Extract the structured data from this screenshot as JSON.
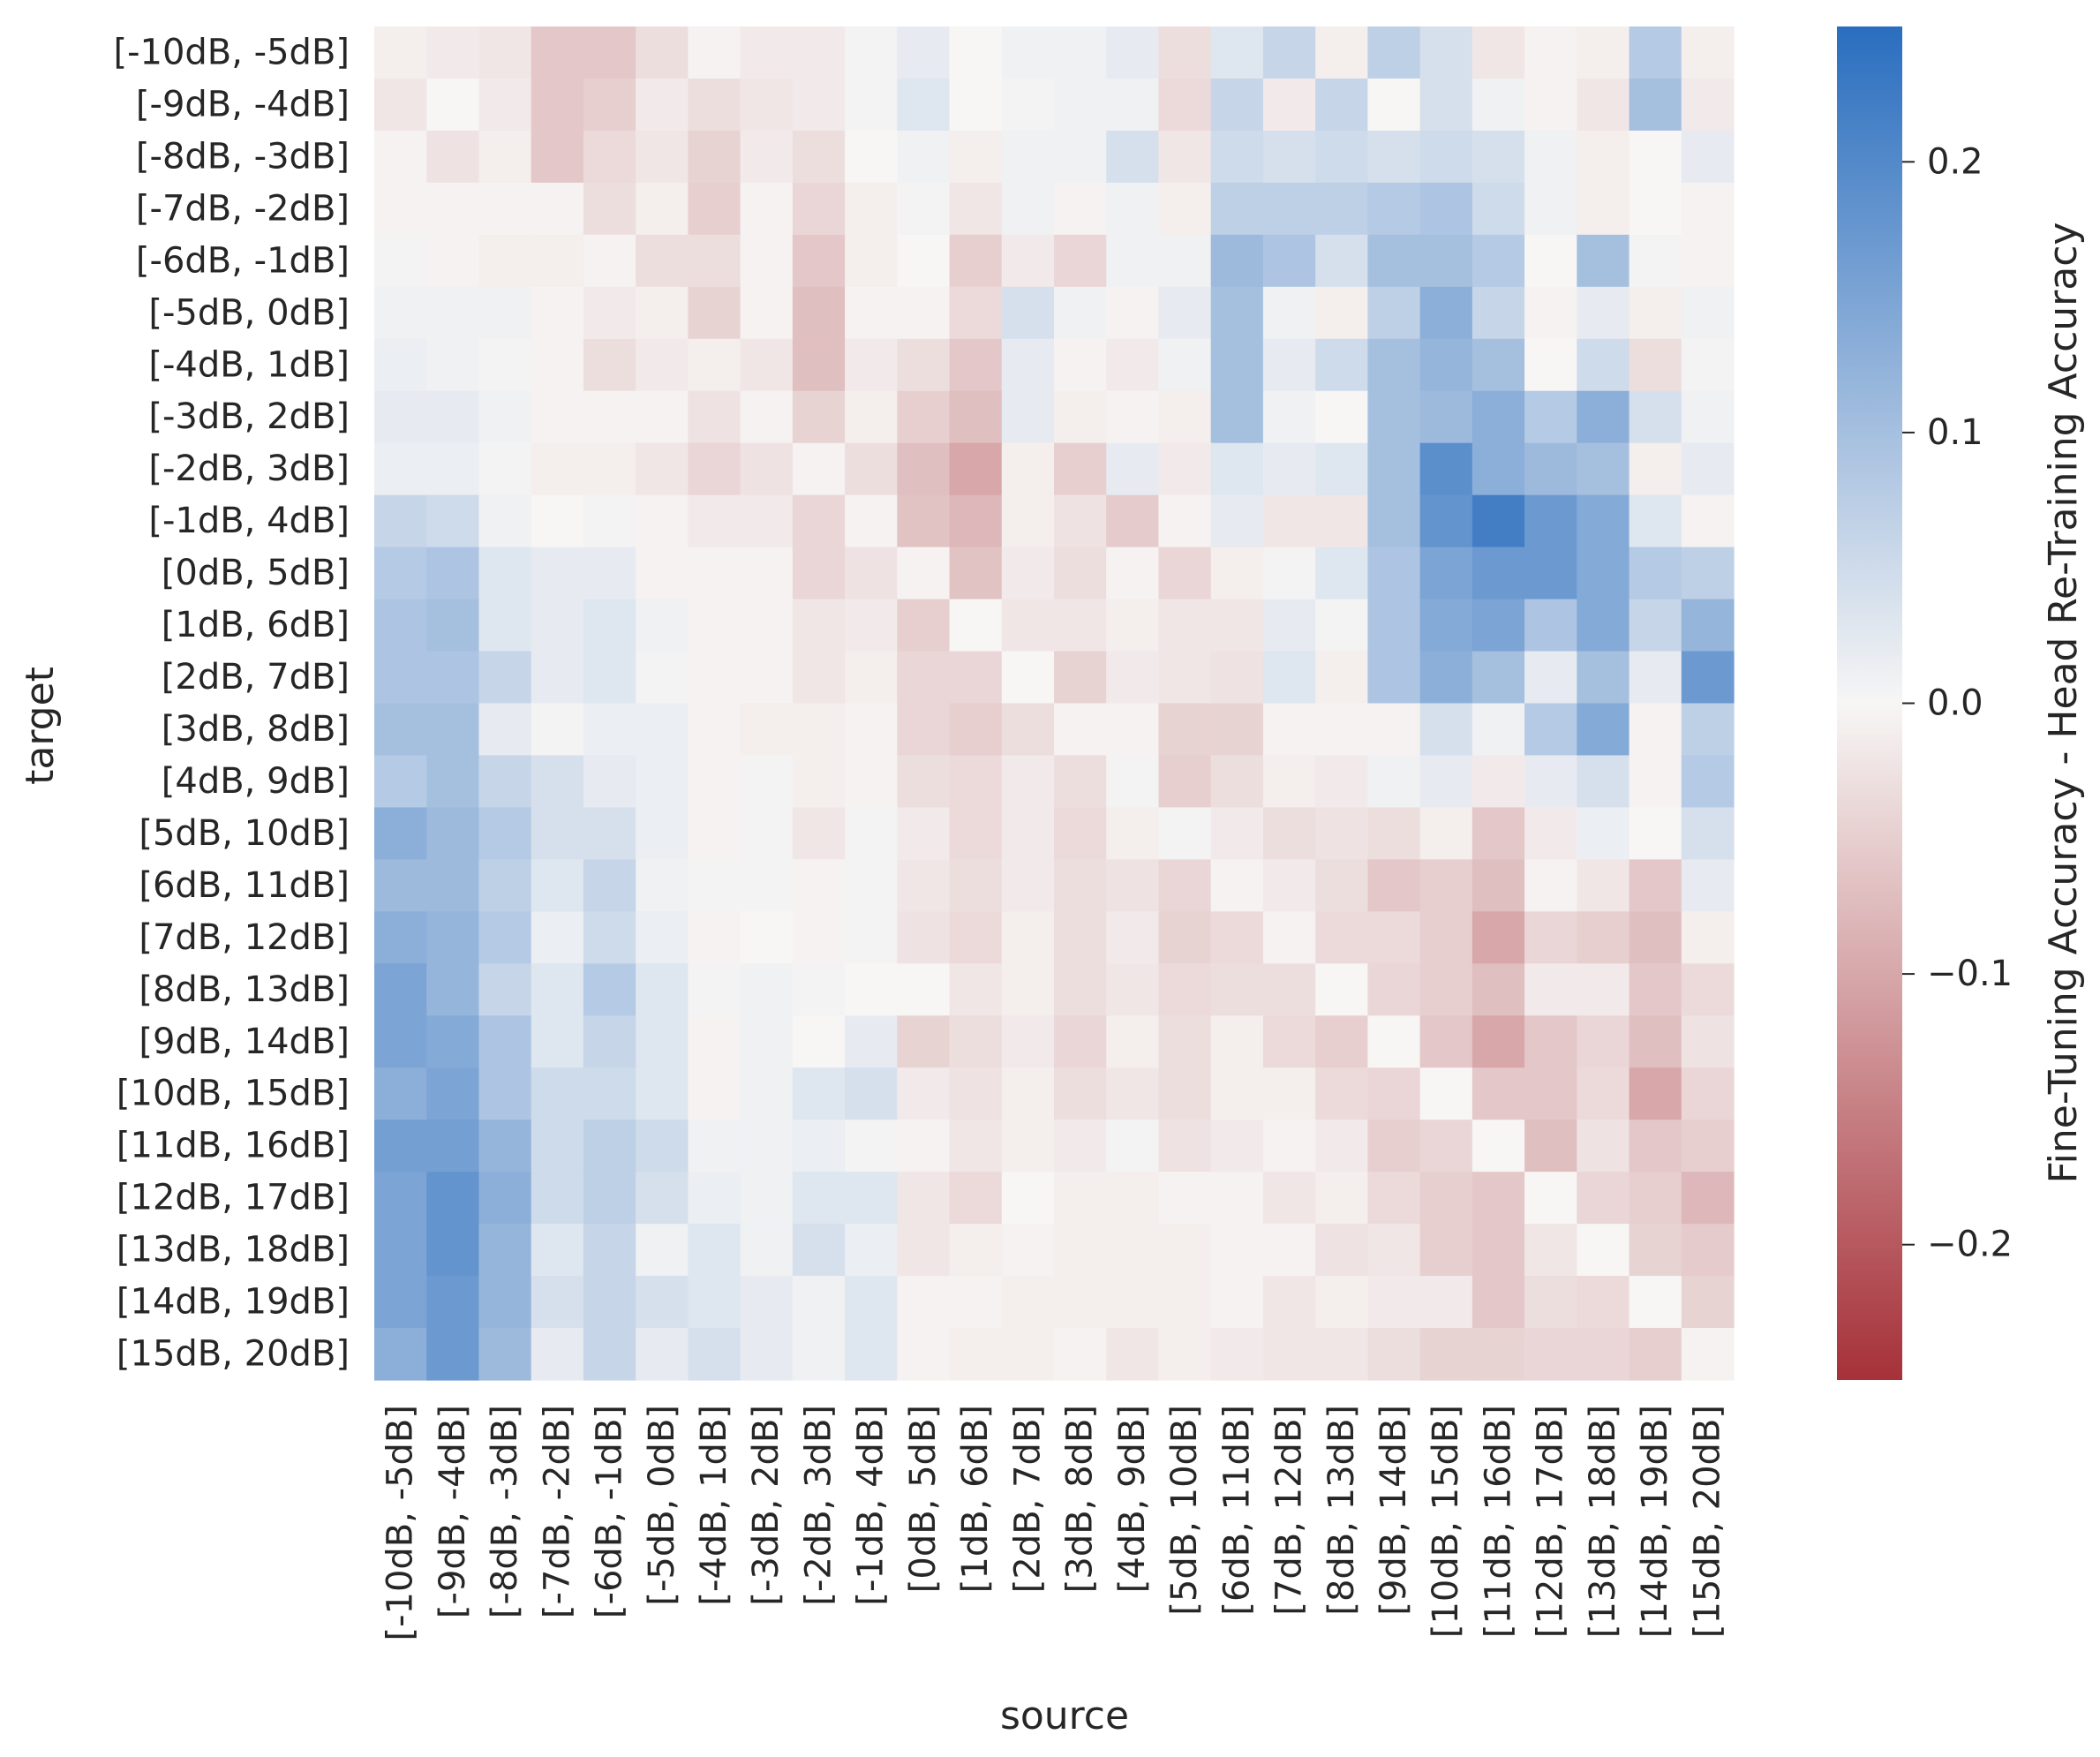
{
  "chart_data": {
    "type": "heatmap",
    "xlabel": "source",
    "ylabel": "target",
    "colorbar_label": "Fine-Tuning Accuracy - Head Re-Training Accuracy",
    "colorbar_range": [
      -0.25,
      0.25
    ],
    "colorbar_ticks": [
      {
        "value": 0.2,
        "label": "0.2"
      },
      {
        "value": 0.1,
        "label": "0.1"
      },
      {
        "value": 0.0,
        "label": "0.0"
      },
      {
        "value": -0.1,
        "label": "−0.1"
      },
      {
        "value": -0.2,
        "label": "−0.2"
      }
    ],
    "colormap": {
      "negative": "#a63139",
      "center": "#f7f6f5",
      "positive": "#2a6ebf"
    },
    "x_categories": [
      "[-10dB, -5dB]",
      "[-9dB, -4dB]",
      "[-8dB, -3dB]",
      "[-7dB, -2dB]",
      "[-6dB, -1dB]",
      "[-5dB, 0dB]",
      "[-4dB, 1dB]",
      "[-3dB, 2dB]",
      "[-2dB, 3dB]",
      "[-1dB, 4dB]",
      "[0dB, 5dB]",
      "[1dB, 6dB]",
      "[2dB, 7dB]",
      "[3dB, 8dB]",
      "[4dB, 9dB]",
      "[5dB, 10dB]",
      "[6dB, 11dB]",
      "[7dB, 12dB]",
      "[8dB, 13dB]",
      "[9dB, 14dB]",
      "[10dB, 15dB]",
      "[11dB, 16dB]",
      "[12dB, 17dB]",
      "[13dB, 18dB]",
      "[14dB, 19dB]",
      "[15dB, 20dB]"
    ],
    "y_categories": [
      "[-10dB, -5dB]",
      "[-9dB, -4dB]",
      "[-8dB, -3dB]",
      "[-7dB, -2dB]",
      "[-6dB, -1dB]",
      "[-5dB, 0dB]",
      "[-4dB, 1dB]",
      "[-3dB, 2dB]",
      "[-2dB, 3dB]",
      "[-1dB, 4dB]",
      "[0dB, 5dB]",
      "[1dB, 6dB]",
      "[2dB, 7dB]",
      "[3dB, 8dB]",
      "[4dB, 9dB]",
      "[5dB, 10dB]",
      "[6dB, 11dB]",
      "[7dB, 12dB]",
      "[8dB, 13dB]",
      "[9dB, 14dB]",
      "[10dB, 15dB]",
      "[11dB, 16dB]",
      "[12dB, 17dB]",
      "[13dB, 18dB]",
      "[14dB, 19dB]",
      "[15dB, 20dB]"
    ],
    "values": [
      [
        -0.01,
        -0.015,
        -0.02,
        -0.06,
        -0.06,
        -0.03,
        -0.005,
        -0.015,
        -0.015,
        0.005,
        0.02,
        0.0,
        0.01,
        0.01,
        0.02,
        -0.03,
        0.03,
        0.06,
        -0.01,
        0.07,
        0.04,
        -0.02,
        -0.005,
        -0.01,
        0.08,
        -0.01
      ],
      [
        -0.02,
        0.0,
        -0.015,
        -0.06,
        -0.05,
        -0.015,
        -0.03,
        -0.02,
        -0.015,
        0.005,
        0.03,
        0.0,
        0.005,
        0.01,
        0.01,
        -0.035,
        0.06,
        -0.015,
        0.06,
        0.0,
        0.04,
        0.01,
        -0.005,
        -0.02,
        0.1,
        -0.015
      ],
      [
        -0.005,
        -0.025,
        -0.01,
        -0.06,
        -0.035,
        -0.02,
        -0.045,
        -0.015,
        -0.03,
        0.0,
        0.01,
        -0.01,
        0.01,
        0.01,
        0.04,
        -0.02,
        0.05,
        0.04,
        0.05,
        0.04,
        0.05,
        0.04,
        0.01,
        -0.01,
        0.0,
        0.02
      ],
      [
        -0.005,
        -0.005,
        -0.005,
        -0.005,
        -0.03,
        -0.01,
        -0.05,
        -0.005,
        -0.04,
        -0.01,
        0.005,
        -0.02,
        0.01,
        -0.005,
        0.01,
        -0.01,
        0.07,
        0.07,
        0.07,
        0.08,
        0.09,
        0.05,
        0.01,
        -0.01,
        0.0,
        -0.005
      ],
      [
        0.005,
        -0.005,
        -0.01,
        -0.01,
        -0.005,
        -0.03,
        -0.03,
        -0.005,
        -0.06,
        -0.01,
        0.0,
        -0.05,
        -0.015,
        -0.04,
        0.01,
        0.01,
        0.11,
        0.09,
        0.04,
        0.1,
        0.1,
        0.08,
        0.0,
        0.1,
        0.005,
        -0.005
      ],
      [
        0.01,
        0.01,
        0.01,
        -0.005,
        -0.015,
        -0.01,
        -0.045,
        -0.005,
        -0.07,
        -0.005,
        -0.005,
        -0.035,
        0.04,
        0.01,
        -0.005,
        0.02,
        0.1,
        0.01,
        -0.01,
        0.07,
        0.13,
        0.06,
        -0.005,
        0.02,
        -0.01,
        0.01
      ],
      [
        0.015,
        0.01,
        0.005,
        -0.005,
        -0.03,
        -0.015,
        -0.01,
        -0.02,
        -0.07,
        -0.015,
        -0.03,
        -0.06,
        0.02,
        -0.005,
        -0.015,
        0.01,
        0.1,
        0.02,
        0.05,
        0.1,
        0.12,
        0.1,
        0.0,
        0.05,
        -0.03,
        0.005
      ],
      [
        0.02,
        0.02,
        0.01,
        -0.005,
        -0.005,
        -0.005,
        -0.025,
        -0.005,
        -0.045,
        -0.01,
        -0.05,
        -0.07,
        0.02,
        -0.01,
        -0.005,
        -0.01,
        0.1,
        0.01,
        0.0,
        0.1,
        0.11,
        0.13,
        0.08,
        0.13,
        0.04,
        0.01
      ],
      [
        0.015,
        0.015,
        0.005,
        -0.01,
        -0.01,
        -0.02,
        -0.04,
        -0.025,
        -0.005,
        -0.03,
        -0.07,
        -0.1,
        -0.01,
        -0.05,
        0.02,
        -0.015,
        0.03,
        0.02,
        0.03,
        0.1,
        0.19,
        0.13,
        0.11,
        0.1,
        -0.01,
        0.02
      ],
      [
        0.06,
        0.05,
        0.01,
        0.0,
        0.005,
        -0.005,
        -0.015,
        -0.015,
        -0.04,
        -0.005,
        -0.065,
        -0.08,
        -0.01,
        -0.025,
        -0.055,
        -0.005,
        0.02,
        -0.02,
        -0.02,
        0.1,
        0.18,
        0.22,
        0.17,
        0.14,
        0.03,
        -0.005
      ],
      [
        0.08,
        0.09,
        0.03,
        0.02,
        0.02,
        -0.005,
        -0.005,
        -0.005,
        -0.04,
        -0.025,
        -0.005,
        -0.065,
        -0.015,
        -0.03,
        -0.005,
        -0.04,
        -0.01,
        0.005,
        0.03,
        0.09,
        0.15,
        0.17,
        0.17,
        0.14,
        0.08,
        0.07
      ],
      [
        0.09,
        0.1,
        0.03,
        0.02,
        0.03,
        0.01,
        -0.005,
        -0.005,
        -0.02,
        -0.015,
        -0.05,
        0.0,
        -0.02,
        -0.02,
        -0.01,
        -0.02,
        -0.02,
        0.02,
        0.005,
        0.09,
        0.14,
        0.15,
        0.09,
        0.14,
        0.06,
        0.12
      ],
      [
        0.09,
        0.09,
        0.06,
        0.02,
        0.03,
        0.005,
        -0.005,
        -0.005,
        -0.02,
        -0.01,
        -0.04,
        -0.04,
        0.0,
        -0.045,
        -0.015,
        -0.02,
        -0.025,
        0.03,
        -0.01,
        0.09,
        0.13,
        0.1,
        0.02,
        0.1,
        0.02,
        0.17
      ],
      [
        0.1,
        0.1,
        0.02,
        0.005,
        0.015,
        0.015,
        -0.005,
        -0.01,
        -0.01,
        -0.005,
        -0.04,
        -0.05,
        -0.03,
        -0.005,
        -0.005,
        -0.045,
        -0.045,
        -0.005,
        -0.005,
        -0.005,
        0.04,
        0.01,
        0.08,
        0.14,
        -0.005,
        0.07
      ],
      [
        0.08,
        0.1,
        0.06,
        0.04,
        0.02,
        0.015,
        -0.005,
        0.005,
        -0.01,
        -0.005,
        -0.03,
        -0.035,
        -0.015,
        -0.03,
        0.005,
        -0.05,
        -0.03,
        -0.01,
        -0.015,
        0.01,
        0.02,
        -0.015,
        0.02,
        0.04,
        -0.005,
        0.08
      ],
      [
        0.13,
        0.11,
        0.08,
        0.04,
        0.04,
        0.015,
        -0.005,
        0.005,
        -0.02,
        0.005,
        -0.015,
        -0.035,
        -0.015,
        -0.035,
        -0.01,
        0.005,
        -0.015,
        -0.03,
        -0.025,
        -0.03,
        -0.01,
        -0.06,
        -0.015,
        0.015,
        0.0,
        0.04
      ],
      [
        0.11,
        0.11,
        0.07,
        0.03,
        0.06,
        0.01,
        0.005,
        0.005,
        -0.005,
        0.005,
        -0.02,
        -0.03,
        -0.015,
        -0.03,
        -0.025,
        -0.04,
        -0.005,
        -0.015,
        -0.03,
        -0.06,
        -0.05,
        -0.07,
        -0.005,
        -0.02,
        -0.06,
        0.02
      ],
      [
        0.13,
        0.12,
        0.08,
        0.015,
        0.05,
        0.015,
        -0.005,
        0.0,
        -0.005,
        0.005,
        -0.025,
        -0.035,
        -0.01,
        -0.03,
        -0.015,
        -0.045,
        -0.035,
        -0.005,
        -0.035,
        -0.035,
        -0.05,
        -0.1,
        -0.04,
        -0.05,
        -0.07,
        -0.01
      ],
      [
        0.15,
        0.12,
        0.06,
        0.03,
        0.08,
        0.03,
        0.005,
        0.01,
        0.005,
        0.0,
        0.0,
        -0.02,
        -0.01,
        -0.03,
        -0.02,
        -0.035,
        -0.03,
        -0.03,
        0.0,
        -0.04,
        -0.05,
        -0.07,
        -0.015,
        -0.015,
        -0.06,
        -0.035
      ],
      [
        0.15,
        0.14,
        0.09,
        0.03,
        0.06,
        0.03,
        -0.005,
        0.01,
        0.0,
        0.02,
        -0.045,
        -0.03,
        -0.015,
        -0.04,
        -0.01,
        -0.03,
        -0.01,
        -0.035,
        -0.05,
        0.0,
        -0.06,
        -0.1,
        -0.06,
        -0.04,
        -0.07,
        -0.025
      ],
      [
        0.13,
        0.15,
        0.09,
        0.05,
        0.05,
        0.03,
        -0.005,
        0.01,
        0.03,
        0.04,
        -0.015,
        -0.025,
        -0.01,
        -0.03,
        -0.02,
        -0.03,
        -0.01,
        -0.01,
        -0.035,
        -0.04,
        0.0,
        -0.06,
        -0.06,
        -0.035,
        -0.1,
        -0.04
      ],
      [
        0.16,
        0.16,
        0.12,
        0.05,
        0.07,
        0.05,
        0.01,
        0.01,
        0.015,
        0.005,
        -0.005,
        -0.02,
        -0.01,
        -0.015,
        0.005,
        -0.025,
        -0.015,
        -0.005,
        -0.015,
        -0.05,
        -0.04,
        0.0,
        -0.07,
        -0.025,
        -0.06,
        -0.05
      ],
      [
        0.15,
        0.18,
        0.13,
        0.05,
        0.07,
        0.04,
        0.015,
        0.01,
        0.03,
        0.03,
        -0.02,
        -0.035,
        0.0,
        -0.01,
        -0.01,
        -0.005,
        -0.005,
        -0.02,
        -0.01,
        -0.035,
        -0.05,
        -0.06,
        0.0,
        -0.04,
        -0.05,
        -0.08
      ],
      [
        0.15,
        0.18,
        0.12,
        0.03,
        0.06,
        0.01,
        0.03,
        0.01,
        0.04,
        0.015,
        -0.02,
        -0.01,
        -0.005,
        -0.01,
        -0.01,
        -0.01,
        -0.005,
        -0.005,
        -0.025,
        -0.02,
        -0.05,
        -0.06,
        -0.02,
        0.0,
        -0.045,
        -0.055
      ],
      [
        0.15,
        0.17,
        0.12,
        0.04,
        0.06,
        0.04,
        0.03,
        0.02,
        0.01,
        0.03,
        -0.005,
        -0.005,
        -0.01,
        -0.01,
        -0.01,
        -0.01,
        -0.005,
        -0.02,
        -0.01,
        -0.015,
        -0.015,
        -0.06,
        -0.03,
        -0.035,
        0.0,
        -0.045
      ],
      [
        0.13,
        0.17,
        0.11,
        0.02,
        0.06,
        0.02,
        0.04,
        0.02,
        0.01,
        0.03,
        -0.005,
        -0.01,
        -0.01,
        -0.005,
        -0.02,
        -0.01,
        -0.015,
        -0.02,
        -0.02,
        -0.03,
        -0.045,
        -0.045,
        -0.04,
        -0.04,
        -0.05,
        -0.005
      ]
    ]
  }
}
